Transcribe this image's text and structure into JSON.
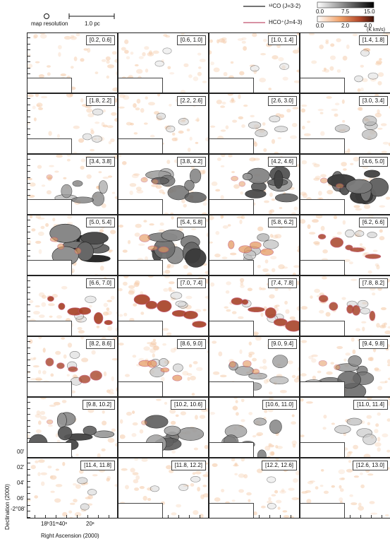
{
  "header": {
    "map_resolution_label": "map resolution",
    "scale_bar_label": "1.0 pc",
    "legend": [
      {
        "name": "¹²CO (J=3-2)",
        "color": "#222222",
        "ticks": [
          "0.0",
          "7.5",
          "15.0"
        ]
      },
      {
        "name": "HCO⁺(J=4-3)",
        "color": "#c0506e",
        "ticks": [
          "0.0",
          "2.0",
          "4.0"
        ]
      }
    ],
    "unit": "(K km/s)"
  },
  "axes": {
    "ylabel": "Declination (2000)",
    "xlabel": "Right Ascension (2000)",
    "dec_ticks": [
      "00'",
      "02'",
      "04'",
      "06'",
      "-2°08'"
    ],
    "ra_ticks": [
      "18ʰ31ᵐ40ˢ",
      "20ˢ"
    ]
  },
  "panels": [
    {
      "label": "[0.2, 0.6]",
      "co": 0.0,
      "hco": 0.0
    },
    {
      "label": "[0.6, 1.0]",
      "co": 0.02,
      "hco": 0.0
    },
    {
      "label": "[1.0, 1.4]",
      "co": 0.05,
      "hco": 0.0
    },
    {
      "label": "[1.4, 1.8]",
      "co": 0.07,
      "hco": 0.0
    },
    {
      "label": "[1.8, 2.2]",
      "co": 0.1,
      "hco": 0.0
    },
    {
      "label": "[2.2, 2.6]",
      "co": 0.12,
      "hco": 0.0
    },
    {
      "label": "[2.6, 3.0]",
      "co": 0.2,
      "hco": 0.0
    },
    {
      "label": "[3.0, 3.4]",
      "co": 0.3,
      "hco": 0.0
    },
    {
      "label": "[3.4, 3.8]",
      "co": 0.55,
      "hco": 0.05
    },
    {
      "label": "[3.8, 4.2]",
      "co": 0.7,
      "hco": 0.1
    },
    {
      "label": "[4.2, 4.6]",
      "co": 0.85,
      "hco": 0.15
    },
    {
      "label": "[4.6, 5.0]",
      "co": 0.95,
      "hco": 0.2
    },
    {
      "label": "[5.0, 5.4]",
      "co": 1.0,
      "hco": 0.3
    },
    {
      "label": "[5.4, 5.8]",
      "co": 0.9,
      "hco": 0.4
    },
    {
      "label": "[5.8, 6.2]",
      "co": 0.35,
      "hco": 0.6
    },
    {
      "label": "[6.2, 6.6]",
      "co": 0.15,
      "hco": 0.8
    },
    {
      "label": "[6.6, 7.0]",
      "co": 0.1,
      "hco": 0.95
    },
    {
      "label": "[7.0, 7.4]",
      "co": 0.12,
      "hco": 0.95
    },
    {
      "label": "[7.4, 7.8]",
      "co": 0.12,
      "hco": 0.9
    },
    {
      "label": "[7.8, 8.2]",
      "co": 0.12,
      "hco": 0.8
    },
    {
      "label": "[8.2, 8.6]",
      "co": 0.15,
      "hco": 0.7
    },
    {
      "label": "[8.6, 9.0]",
      "co": 0.25,
      "hco": 0.55
    },
    {
      "label": "[9.0, 9.4]",
      "co": 0.45,
      "hco": 0.35
    },
    {
      "label": "[9.4, 9.8]",
      "co": 0.7,
      "hco": 0.2
    },
    {
      "label": "[9.8, 10.2]",
      "co": 0.85,
      "hco": 0.05
    },
    {
      "label": "[10.2, 10.6]",
      "co": 0.75,
      "hco": 0.02
    },
    {
      "label": "[10.6, 11.0]",
      "co": 0.6,
      "hco": 0.0
    },
    {
      "label": "[11.0, 11.4]",
      "co": 0.3,
      "hco": 0.0
    },
    {
      "label": "[11.4, 11.8]",
      "co": 0.15,
      "hco": 0.0
    },
    {
      "label": "[11.8, 12.2]",
      "co": 0.07,
      "hco": 0.0
    },
    {
      "label": "[12.2, 12.6]",
      "co": 0.02,
      "hco": 0.0
    },
    {
      "label": "[12.6, 13.0]",
      "co": 0.01,
      "hco": 0.0
    }
  ]
}
